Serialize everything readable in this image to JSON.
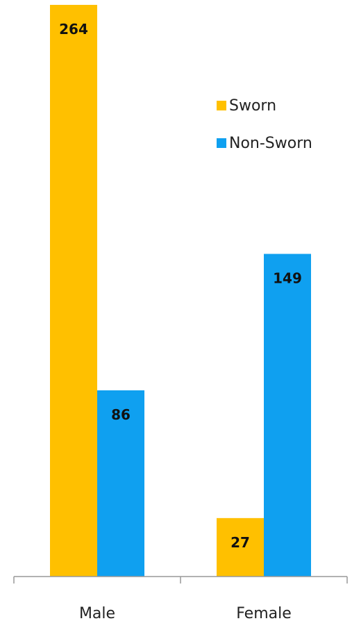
{
  "chart_data": {
    "type": "bar",
    "categories": [
      "Male",
      "Female"
    ],
    "series": [
      {
        "name": "Sworn",
        "values": [
          264,
          27
        ],
        "color": "#FFC000"
      },
      {
        "name": "Non-Sworn",
        "values": [
          86,
          149
        ],
        "color": "#0FA0F0"
      }
    ],
    "title": "",
    "xlabel": "",
    "ylabel": "",
    "ylim": [
      0,
      264
    ],
    "grid": false,
    "legend": "top-right",
    "axis_color": "#999999"
  }
}
